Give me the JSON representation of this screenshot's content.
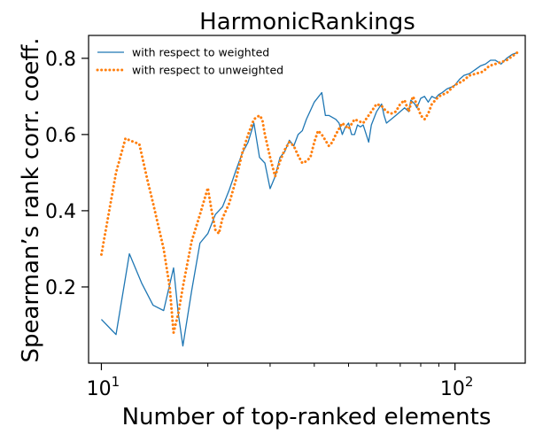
{
  "chart_data": {
    "type": "line",
    "title": "HarmonicRankings",
    "xlabel": "Number of top-ranked elements",
    "ylabel": "Spearman’s rank corr. coeff.",
    "x_scale": "log",
    "xlim": [
      9.2,
      158
    ],
    "ylim": [
      0.0,
      0.86
    ],
    "x_major_ticks": [
      10,
      100
    ],
    "x_major_tick_labels": [
      {
        "base": "10",
        "exponent": "1"
      },
      {
        "base": "10",
        "exponent": "2"
      }
    ],
    "x_minor_ticks": [
      20,
      30,
      40,
      50,
      60,
      70,
      80,
      90
    ],
    "y_ticks": [
      0.2,
      0.4,
      0.6,
      0.8
    ],
    "y_tick_labels": [
      "0.2",
      "0.4",
      "0.6",
      "0.8"
    ],
    "grid": false,
    "legend_position": "top-left",
    "series": [
      {
        "name": "with respect to weighted",
        "color": "#1f77b4",
        "style": "solid",
        "points": [
          [
            10,
            0.115
          ],
          [
            11,
            0.075
          ],
          [
            12,
            0.287
          ],
          [
            13,
            0.21
          ],
          [
            14,
            0.152
          ],
          [
            15,
            0.138
          ],
          [
            16,
            0.25
          ],
          [
            16.5,
            0.13
          ],
          [
            17,
            0.045
          ],
          [
            18,
            0.19
          ],
          [
            19,
            0.315
          ],
          [
            20,
            0.34
          ],
          [
            21,
            0.39
          ],
          [
            22,
            0.41
          ],
          [
            23,
            0.455
          ],
          [
            24,
            0.505
          ],
          [
            25,
            0.55
          ],
          [
            26,
            0.58
          ],
          [
            27,
            0.63
          ],
          [
            28,
            0.54
          ],
          [
            29,
            0.525
          ],
          [
            30,
            0.458
          ],
          [
            31,
            0.49
          ],
          [
            32,
            0.54
          ],
          [
            33,
            0.555
          ],
          [
            34,
            0.585
          ],
          [
            35,
            0.57
          ],
          [
            36,
            0.6
          ],
          [
            37,
            0.61
          ],
          [
            38,
            0.64
          ],
          [
            40,
            0.685
          ],
          [
            42,
            0.71
          ],
          [
            43,
            0.65
          ],
          [
            44,
            0.65
          ],
          [
            46,
            0.64
          ],
          [
            47,
            0.63
          ],
          [
            48,
            0.6
          ],
          [
            49,
            0.62
          ],
          [
            50,
            0.63
          ],
          [
            51,
            0.6
          ],
          [
            52,
            0.6
          ],
          [
            53,
            0.625
          ],
          [
            54,
            0.62
          ],
          [
            55,
            0.625
          ],
          [
            57,
            0.58
          ],
          [
            58,
            0.625
          ],
          [
            60,
            0.66
          ],
          [
            62,
            0.68
          ],
          [
            63,
            0.65
          ],
          [
            64,
            0.63
          ],
          [
            66,
            0.64
          ],
          [
            68,
            0.65
          ],
          [
            70,
            0.66
          ],
          [
            72,
            0.67
          ],
          [
            74,
            0.66
          ],
          [
            75,
            0.69
          ],
          [
            77,
            0.68
          ],
          [
            78,
            0.67
          ],
          [
            80,
            0.695
          ],
          [
            82,
            0.7
          ],
          [
            84,
            0.685
          ],
          [
            86,
            0.7
          ],
          [
            88,
            0.695
          ],
          [
            90,
            0.705
          ],
          [
            92,
            0.71
          ],
          [
            95,
            0.72
          ],
          [
            98,
            0.725
          ],
          [
            100,
            0.73
          ],
          [
            103,
            0.745
          ],
          [
            106,
            0.755
          ],
          [
            110,
            0.76
          ],
          [
            114,
            0.77
          ],
          [
            118,
            0.78
          ],
          [
            122,
            0.785
          ],
          [
            126,
            0.795
          ],
          [
            130,
            0.795
          ],
          [
            135,
            0.785
          ],
          [
            140,
            0.8
          ],
          [
            145,
            0.81
          ],
          [
            150,
            0.815
          ]
        ]
      },
      {
        "name": "with respect to unweighted",
        "color": "#ff7f0e",
        "style": "dotted",
        "points": [
          [
            10,
            0.285
          ],
          [
            11,
            0.5
          ],
          [
            11.7,
            0.59
          ],
          [
            12,
            0.585
          ],
          [
            12.8,
            0.575
          ],
          [
            13.5,
            0.48
          ],
          [
            14,
            0.42
          ],
          [
            15,
            0.3
          ],
          [
            15.6,
            0.2
          ],
          [
            16,
            0.08
          ],
          [
            16.5,
            0.13
          ],
          [
            17,
            0.2
          ],
          [
            18,
            0.32
          ],
          [
            19,
            0.39
          ],
          [
            20,
            0.46
          ],
          [
            20.5,
            0.4
          ],
          [
            21,
            0.35
          ],
          [
            21.5,
            0.34
          ],
          [
            22,
            0.38
          ],
          [
            23,
            0.42
          ],
          [
            24,
            0.48
          ],
          [
            25,
            0.55
          ],
          [
            26,
            0.6
          ],
          [
            27,
            0.64
          ],
          [
            28,
            0.65
          ],
          [
            28.5,
            0.64
          ],
          [
            29,
            0.6
          ],
          [
            30,
            0.54
          ],
          [
            31,
            0.49
          ],
          [
            32,
            0.53
          ],
          [
            33,
            0.56
          ],
          [
            34,
            0.58
          ],
          [
            35,
            0.57
          ],
          [
            36,
            0.545
          ],
          [
            37,
            0.525
          ],
          [
            38,
            0.53
          ],
          [
            39,
            0.54
          ],
          [
            40,
            0.58
          ],
          [
            41,
            0.61
          ],
          [
            42,
            0.6
          ],
          [
            44,
            0.57
          ],
          [
            45,
            0.58
          ],
          [
            46,
            0.6
          ],
          [
            48,
            0.63
          ],
          [
            50,
            0.615
          ],
          [
            52,
            0.64
          ],
          [
            55,
            0.63
          ],
          [
            58,
            0.66
          ],
          [
            60,
            0.68
          ],
          [
            62,
            0.675
          ],
          [
            64,
            0.66
          ],
          [
            66,
            0.655
          ],
          [
            68,
            0.66
          ],
          [
            70,
            0.68
          ],
          [
            72,
            0.69
          ],
          [
            74,
            0.66
          ],
          [
            76,
            0.7
          ],
          [
            78,
            0.68
          ],
          [
            80,
            0.65
          ],
          [
            82,
            0.64
          ],
          [
            84,
            0.655
          ],
          [
            86,
            0.68
          ],
          [
            90,
            0.7
          ],
          [
            95,
            0.71
          ],
          [
            100,
            0.73
          ],
          [
            105,
            0.74
          ],
          [
            110,
            0.755
          ],
          [
            115,
            0.76
          ],
          [
            120,
            0.765
          ],
          [
            125,
            0.78
          ],
          [
            130,
            0.785
          ],
          [
            135,
            0.79
          ],
          [
            140,
            0.795
          ],
          [
            145,
            0.805
          ],
          [
            150,
            0.815
          ]
        ]
      }
    ]
  }
}
